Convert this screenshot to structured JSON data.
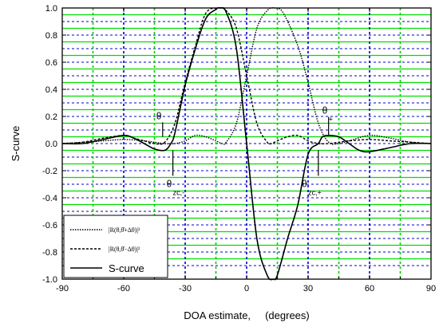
{
  "chart_data": {
    "type": "line",
    "title": "",
    "xlabel": "DOA estimate,     (degrees)",
    "ylabel": "S-curve",
    "xlim": [
      -90,
      90
    ],
    "ylim": [
      -1.0,
      1.0
    ],
    "xticks": [
      -90,
      -60,
      -30,
      0,
      30,
      60,
      90
    ],
    "xtick_labels": [
      "-90",
      "-60",
      "-30",
      "0",
      "30",
      "60",
      "90"
    ],
    "yticks": [
      -1.0,
      -0.8,
      -0.6,
      -0.4,
      -0.2,
      0.0,
      0.2,
      0.4,
      0.6,
      0.8,
      1.0
    ],
    "ytick_labels": [
      "-1.0",
      "-0.8",
      "-0.6",
      "-0.4",
      "-0.2",
      "0.0",
      "0.2",
      "0.4",
      "0.6",
      "0.8",
      "1.0"
    ],
    "grid": true,
    "grid_colors": {
      "vertical": "#00cc00",
      "horizontal_green": "#00dd00",
      "horizontal_blue": "#0000cc"
    },
    "legend_position": "bottom-left",
    "series": [
      {
        "name": "|R(θ,θ̂+Δθ)|²",
        "style": "dotted",
        "x": [
          -90,
          -80,
          -70,
          -60,
          -50,
          -45,
          -40,
          -35,
          -30,
          -25,
          -20,
          -15,
          -12,
          -10,
          -5,
          0,
          5,
          10,
          14,
          18,
          25,
          30,
          35,
          40,
          45,
          50,
          60,
          70,
          80,
          90
        ],
        "y": [
          0.0,
          0.01,
          0.02,
          0.03,
          0.02,
          0.01,
          0.0,
          0.0,
          0.02,
          0.06,
          0.05,
          0.02,
          0.0,
          0.01,
          0.15,
          0.5,
          0.85,
          0.98,
          1.0,
          0.96,
          0.72,
          0.45,
          0.15,
          0.01,
          0.0,
          0.02,
          0.06,
          0.04,
          0.01,
          0.0
        ]
      },
      {
        "name": "|R(θ,θ̂−Δθ)|²",
        "style": "dashed",
        "x": [
          -90,
          -80,
          -70,
          -60,
          -55,
          -50,
          -45,
          -40,
          -35,
          -30,
          -25,
          -20,
          -14,
          -10,
          -5,
          0,
          5,
          10,
          12,
          15,
          20,
          25,
          30,
          35,
          40,
          45,
          50,
          60,
          70,
          80,
          90
        ],
        "y": [
          0.0,
          0.01,
          0.04,
          0.06,
          0.04,
          0.02,
          0.0,
          0.01,
          0.15,
          0.45,
          0.72,
          0.96,
          1.0,
          0.98,
          0.85,
          0.5,
          0.15,
          0.01,
          0.0,
          0.02,
          0.05,
          0.06,
          0.02,
          0.0,
          0.0,
          0.01,
          0.02,
          0.03,
          0.02,
          0.01,
          0.0
        ]
      },
      {
        "name": "S-curve",
        "style": "solid",
        "x": [
          -90,
          -80,
          -70,
          -60,
          -55,
          -50,
          -45,
          -40,
          -37,
          -35,
          -30,
          -25,
          -20,
          -15,
          -13,
          -10,
          -5,
          0,
          5,
          10,
          13,
          15,
          20,
          25,
          30,
          35,
          37,
          40,
          45,
          50,
          55,
          60,
          70,
          80,
          90
        ],
        "y": [
          0.0,
          0.0,
          0.03,
          0.06,
          0.04,
          0.0,
          -0.04,
          -0.05,
          0.0,
          0.08,
          0.43,
          0.7,
          0.92,
          0.99,
          1.0,
          0.97,
          0.7,
          0.0,
          -0.7,
          -0.97,
          -1.0,
          -0.97,
          -0.7,
          -0.45,
          -0.08,
          0.0,
          0.05,
          0.06,
          0.05,
          0.0,
          -0.05,
          -0.06,
          -0.03,
          0.0,
          0.0
        ]
      }
    ],
    "annotations": [
      {
        "text": "θ",
        "sub": "",
        "x": -41,
        "y": 0.18,
        "target_x": -41,
        "target_y": 0.05
      },
      {
        "text": "θ",
        "sub": "zc,-",
        "x": -36,
        "y": -0.32,
        "target_x": -36,
        "target_y": -0.05
      },
      {
        "text": "θ",
        "sub": "+",
        "x": 40,
        "y": 0.22,
        "target_x": 40,
        "target_y": 0.06
      },
      {
        "text": "θ",
        "sub": "zc,+",
        "x": 30,
        "y": -0.32,
        "target_x": 35,
        "target_y": -0.05
      }
    ],
    "legend": [
      {
        "label": "|R(θ,θ̂+Δθ)|²",
        "style": "dotted"
      },
      {
        "label": "|R(θ,θ̂−Δθ)|²",
        "style": "dashed"
      },
      {
        "label": "S-curve",
        "style": "solid"
      }
    ]
  }
}
